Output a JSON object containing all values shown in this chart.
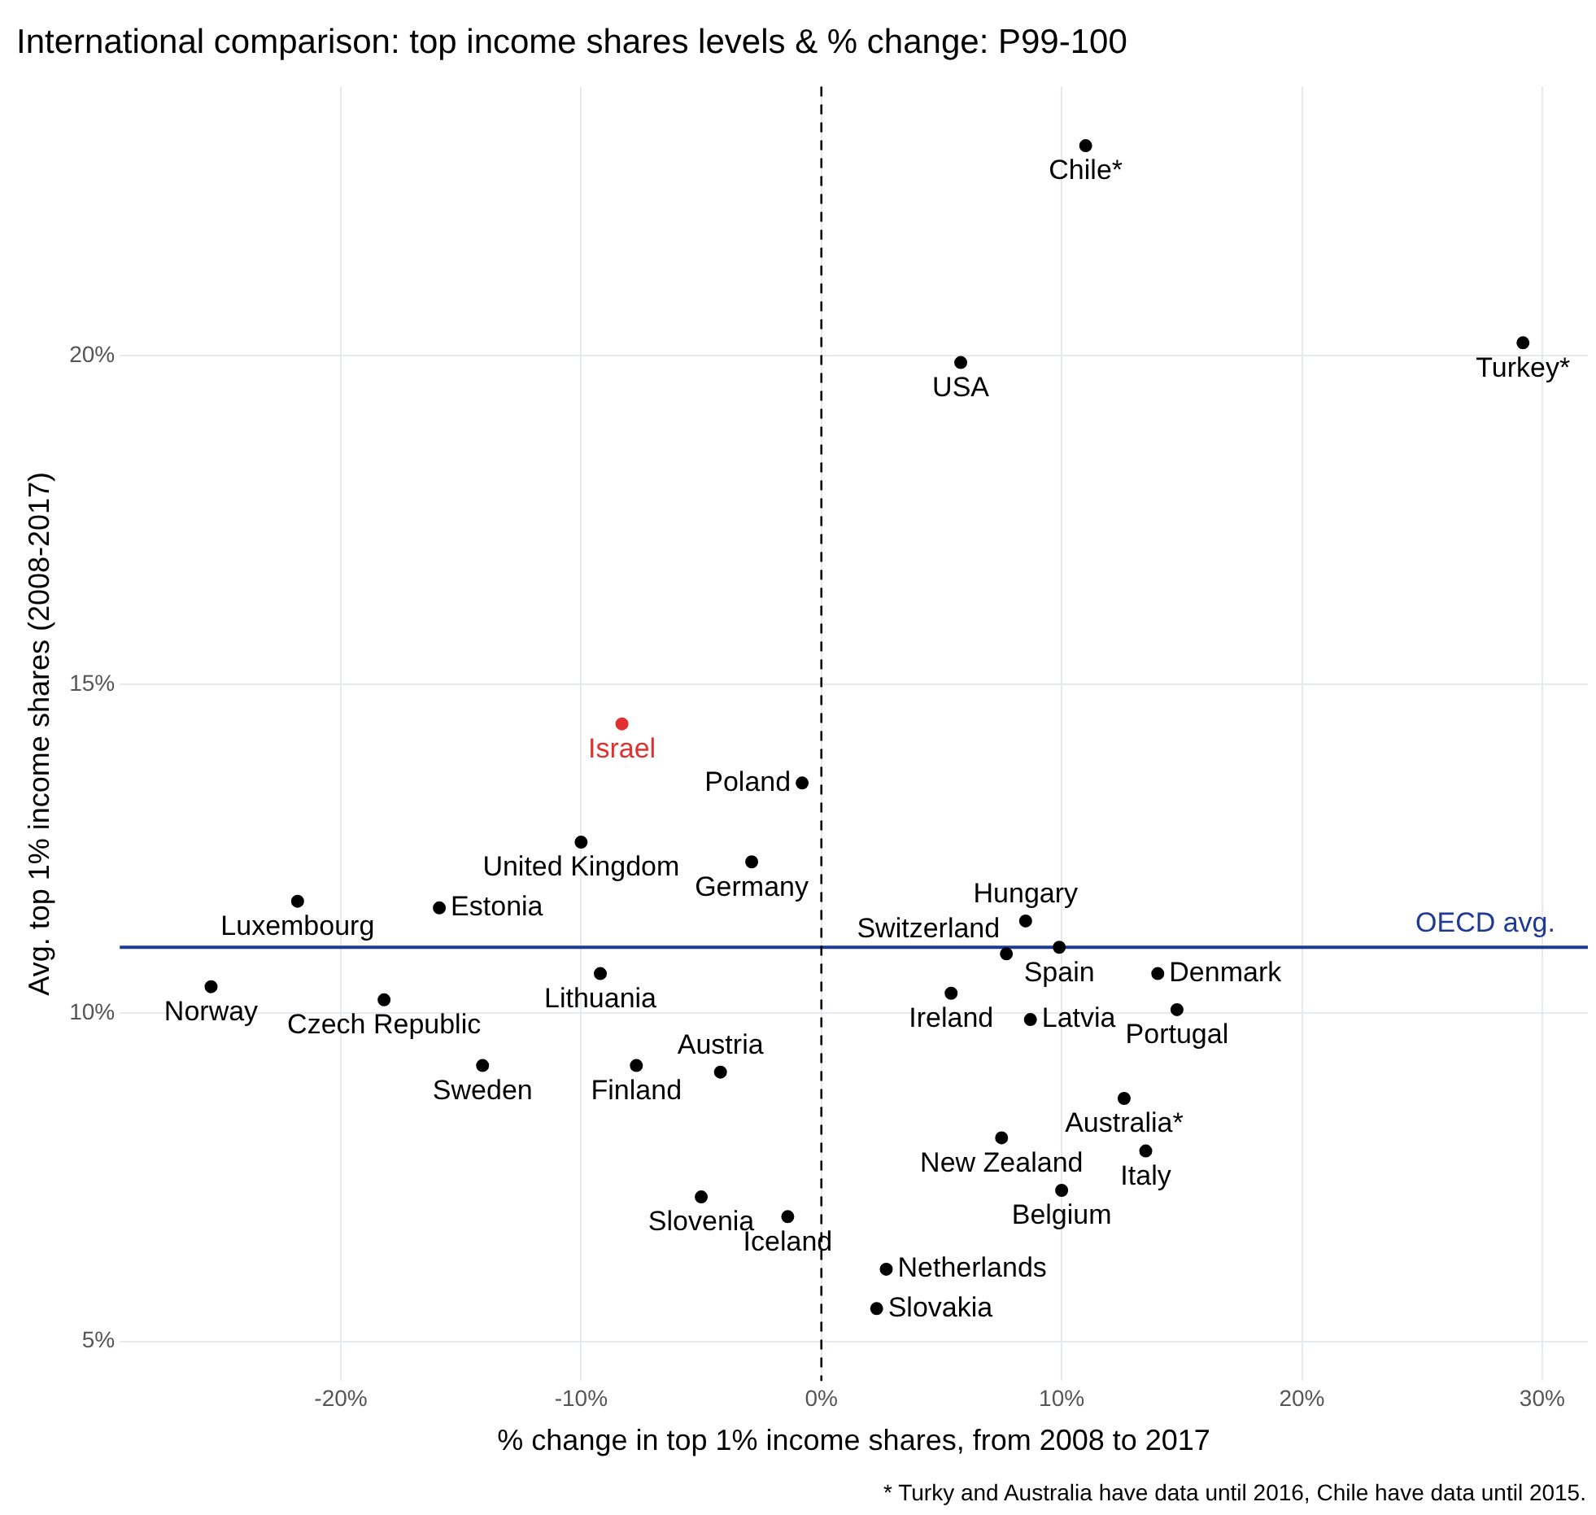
{
  "chart_data": {
    "type": "scatter",
    "title": "International comparison: top income shares levels & % change: P99-100",
    "xlabel": "% change in top 1% income shares, from 2008 to 2017",
    "ylabel": "Avg. top 1% income shares (2008-2017)",
    "x": [
      11.0,
      5.8,
      29.2,
      -8.3,
      -0.8,
      -10.0,
      -2.9,
      -21.8,
      -15.9,
      -25.4,
      -18.2,
      -9.2,
      -7.7,
      -14.1,
      -4.2,
      -5.0,
      -1.4,
      8.5,
      7.7,
      9.9,
      14.0,
      14.8,
      5.4,
      8.7,
      12.6,
      13.5,
      7.5,
      10.0,
      2.7,
      2.3
    ],
    "series": [
      {
        "values": [
          23.2,
          19.9,
          20.2,
          14.4,
          13.5,
          12.6,
          12.3,
          11.7,
          11.6,
          10.4,
          10.2,
          10.6,
          9.2,
          9.2,
          9.1,
          7.2,
          6.9,
          11.4,
          10.9,
          11.0,
          10.6,
          10.05,
          10.3,
          9.9,
          8.7,
          7.9,
          8.1,
          7.3,
          6.1,
          5.5
        ],
        "colors": [
          "#000000",
          "#000000",
          "#000000",
          "#e03030",
          "#000000",
          "#000000",
          "#000000",
          "#000000",
          "#000000",
          "#000000",
          "#000000",
          "#000000",
          "#000000",
          "#000000",
          "#000000",
          "#000000",
          "#000000",
          "#000000",
          "#000000",
          "#000000",
          "#000000",
          "#000000",
          "#000000",
          "#000000",
          "#000000",
          "#000000",
          "#000000",
          "#000000",
          "#000000",
          "#000000"
        ]
      }
    ],
    "annotations": [
      {
        "text": "Chile*",
        "x": 11.0,
        "y": 23.2
      },
      {
        "text": "USA",
        "x": 5.8,
        "y": 19.9
      },
      {
        "text": "Turkey*",
        "x": 29.2,
        "y": 20.2
      },
      {
        "text": "Israel",
        "x": -8.3,
        "y": 14.4
      },
      {
        "text": "Poland",
        "x": -0.8,
        "y": 13.5
      },
      {
        "text": "United Kingdom",
        "x": -10.0,
        "y": 12.6
      },
      {
        "text": "Germany",
        "x": -2.9,
        "y": 12.3
      },
      {
        "text": "Luxembourg",
        "x": -21.8,
        "y": 11.7
      },
      {
        "text": "Estonia",
        "x": -15.9,
        "y": 11.6
      },
      {
        "text": "Norway",
        "x": -25.4,
        "y": 10.4
      },
      {
        "text": "Czech Republic",
        "x": -18.2,
        "y": 10.2
      },
      {
        "text": "Lithuania",
        "x": -9.2,
        "y": 10.6
      },
      {
        "text": "Finland",
        "x": -7.7,
        "y": 9.2
      },
      {
        "text": "Sweden",
        "x": -14.1,
        "y": 9.2
      },
      {
        "text": "Austria",
        "x": -4.2,
        "y": 9.1
      },
      {
        "text": "Slovenia",
        "x": -5.0,
        "y": 7.2
      },
      {
        "text": "Iceland",
        "x": -1.4,
        "y": 6.9
      },
      {
        "text": "Hungary",
        "x": 8.5,
        "y": 11.4
      },
      {
        "text": "Switzerland",
        "x": 7.7,
        "y": 10.9
      },
      {
        "text": "Spain",
        "x": 9.9,
        "y": 11.0
      },
      {
        "text": "Denmark",
        "x": 14.0,
        "y": 10.6
      },
      {
        "text": "Portugal",
        "x": 14.8,
        "y": 10.05
      },
      {
        "text": "Ireland",
        "x": 5.4,
        "y": 10.3
      },
      {
        "text": "Latvia",
        "x": 8.7,
        "y": 9.9
      },
      {
        "text": "Australia*",
        "x": 12.6,
        "y": 8.7
      },
      {
        "text": "Italy",
        "x": 13.5,
        "y": 7.9
      },
      {
        "text": "New Zealand",
        "x": 7.5,
        "y": 8.1
      },
      {
        "text": "Belgium",
        "x": 10.0,
        "y": 7.3
      },
      {
        "text": "Netherlands",
        "x": 2.7,
        "y": 6.1
      },
      {
        "text": "Slovakia",
        "x": 2.3,
        "y": 5.5
      },
      "* Turky and Australia have data until 2016, Chile have data until 2015."
    ],
    "ref_lines": [
      {
        "axis": "y",
        "value": 11.0,
        "label": "OECD avg.",
        "color": "#1f3a93",
        "line_style": "solid"
      },
      {
        "axis": "x",
        "value": 0,
        "color": "#000000",
        "line_style": "dashed"
      }
    ],
    "xlim": [
      -29.2,
      31.9
    ],
    "ylim": [
      4.4,
      24.1
    ],
    "xticks": [
      {
        "value": -20,
        "label": "-20%"
      },
      {
        "value": -10,
        "label": "-10%"
      },
      {
        "value": 0,
        "label": "0%"
      },
      {
        "value": 10,
        "label": "10%"
      },
      {
        "value": 20,
        "label": "20%"
      },
      {
        "value": 30,
        "label": "30%"
      }
    ],
    "yticks": [
      {
        "value": 5,
        "label": "5%"
      },
      {
        "value": 10,
        "label": "10%"
      },
      {
        "value": 15,
        "label": "15%"
      },
      {
        "value": 20,
        "label": "20%"
      }
    ],
    "grid": true,
    "legend": false,
    "marker": "circle"
  }
}
